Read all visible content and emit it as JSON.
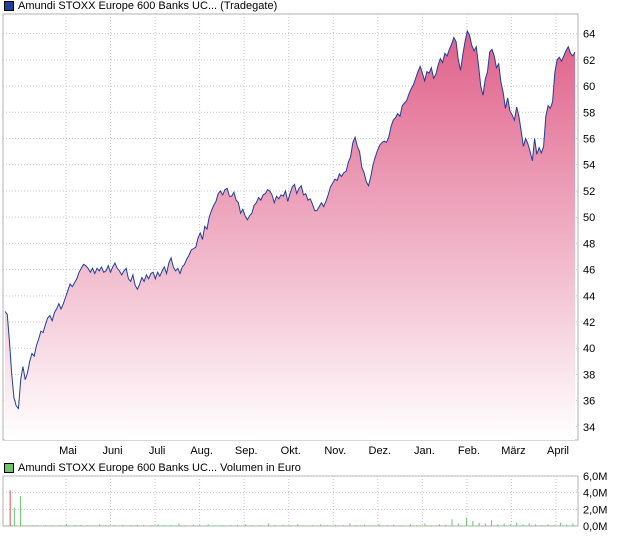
{
  "price_legend": {
    "label": "Amundi STOXX Europe 600 Banks UC... (Tradegate)",
    "color": "#1f3f99"
  },
  "volume_legend": {
    "label": "Amundi STOXX Europe 600 Banks UC... Volumen in Euro",
    "color": "#6cc36c"
  },
  "chart_data": [
    {
      "type": "area",
      "x_labels": [
        "Mai",
        "Juni",
        "Juli",
        "Aug.",
        "Sep.",
        "Okt.",
        "Nov.",
        "Dez.",
        "Jan.",
        "Feb.",
        "März",
        "April"
      ],
      "y_ticks": [
        34,
        36,
        38,
        40,
        42,
        44,
        46,
        48,
        50,
        52,
        54,
        56,
        58,
        60,
        62,
        64
      ],
      "ylim": [
        33,
        65.5
      ],
      "line_color": "#1f3f99",
      "fill_top_color": "#e0608a",
      "fill_bottom_color": "#ffffff",
      "grid": true,
      "series": [
        {
          "values": [
            42.8,
            42.6,
            40.5,
            38.0,
            36.2,
            35.6,
            35.4,
            37.6,
            38.6,
            37.6,
            38.1,
            39.0,
            39.6,
            39.4,
            40.2,
            40.7,
            41.3,
            41.2,
            41.8,
            42.3,
            42.5,
            42.1,
            42.7,
            43.0,
            43.4,
            43.0,
            43.4,
            43.9,
            44.4,
            44.9,
            44.7,
            45.0,
            45.3,
            45.8,
            46.1,
            46.4,
            46.3,
            46.1,
            45.8,
            46.1,
            45.7,
            46.1,
            45.9,
            46.2,
            45.8,
            45.9,
            46.3,
            45.8,
            46.2,
            46.5,
            46.1,
            45.9,
            45.6,
            45.9,
            46.1,
            45.3,
            45.1,
            45.6,
            44.8,
            44.5,
            44.9,
            45.4,
            45.1,
            45.6,
            45.3,
            45.7,
            45.8,
            45.3,
            45.8,
            45.5,
            45.9,
            46.2,
            45.7,
            46.5,
            46.9,
            46.2,
            45.9,
            46.1,
            45.7,
            46.2,
            46.4,
            46.8,
            47.1,
            47.5,
            47.6,
            47.7,
            48.4,
            48.8,
            48.3,
            49.3,
            49.1,
            50.0,
            50.5,
            50.9,
            51.2,
            51.8,
            52.0,
            51.7,
            52.1,
            52.2,
            51.6,
            51.6,
            51.9,
            51.3,
            51.1,
            50.3,
            50.6,
            50.1,
            49.8,
            50.1,
            50.3,
            50.9,
            51.1,
            51.5,
            51.3,
            51.7,
            51.8,
            52.1,
            52.0,
            51.7,
            51.1,
            51.6,
            51.4,
            51.7,
            51.6,
            52.0,
            51.2,
            51.8,
            52.3,
            52.5,
            51.8,
            52.2,
            52.4,
            51.7,
            51.8,
            51.3,
            51.4,
            51.0,
            50.5,
            50.5,
            50.8,
            51.1,
            50.8,
            51.2,
            51.7,
            52.3,
            52.6,
            52.9,
            52.8,
            53.3,
            53.1,
            53.4,
            53.5,
            54.2,
            54.6,
            55.7,
            56.1,
            55.4,
            55.0,
            53.8,
            53.4,
            52.7,
            52.4,
            53.1,
            54.0,
            54.6,
            55.1,
            55.5,
            55.7,
            55.8,
            55.7,
            56.1,
            56.9,
            57.4,
            57.6,
            57.9,
            57.7,
            58.5,
            58.7,
            58.9,
            59.4,
            59.8,
            60.1,
            60.6,
            61.1,
            61.5,
            61.0,
            60.4,
            61.1,
            61.0,
            61.4,
            60.6,
            60.9,
            61.6,
            62.1,
            61.8,
            62.5,
            62.3,
            62.8,
            63.2,
            63.7,
            63.4,
            62.0,
            61.2,
            62.4,
            63.4,
            64.2,
            63.9,
            63.1,
            62.7,
            63.0,
            61.6,
            60.0,
            59.3,
            60.5,
            61.1,
            62.6,
            62.8,
            62.3,
            61.4,
            61.7,
            60.3,
            59.5,
            58.3,
            59.1,
            58.1,
            57.8,
            57.4,
            58.4,
            57.7,
            56.6,
            55.4,
            56.0,
            55.6,
            55.0,
            54.3,
            56.0,
            54.8,
            55.3,
            54.9,
            55.4,
            57.7,
            58.5,
            58.3,
            58.8,
            61.0,
            62.0,
            62.2,
            61.9,
            62.3,
            62.7,
            63.0,
            62.5,
            62.3,
            62.6
          ]
        }
      ]
    },
    {
      "type": "bar",
      "y_ticks": [
        "0,0M",
        "2,0M",
        "4,0M",
        "6,0M"
      ],
      "ylim": [
        0,
        6.0
      ],
      "unit": "M",
      "grid": true,
      "bar_color": "#6cc36c",
      "values": [
        0.05,
        0.05,
        4.3,
        0.1,
        2.2,
        0.08,
        0.05,
        3.6,
        0.1,
        0.05,
        0.08,
        0.05,
        0.05,
        0.1,
        0.05,
        0.08,
        0.05,
        0.05,
        0.05,
        0.1,
        0.05,
        0.05,
        0.08,
        0.05,
        0.05,
        0.05,
        0.1,
        0.05,
        0.05,
        0.2,
        0.08,
        0.05,
        0.05,
        0.1,
        0.05,
        0.05,
        0.15,
        0.05,
        0.05,
        0.1,
        0.05,
        0.05,
        0.08,
        0.05,
        0.05,
        0.2,
        0.05,
        0.05,
        0.1,
        0.05,
        0.05,
        0.05,
        0.1,
        0.05,
        0.05,
        0.05,
        0.15,
        0.05,
        0.05,
        0.05,
        0.1,
        0.05,
        0.05,
        0.15,
        0.05,
        0.05,
        0.1,
        0.05,
        0.05,
        0.05,
        0.1,
        0.05,
        0.05,
        0.2,
        0.05,
        0.05,
        0.08,
        0.05,
        0.05,
        0.1,
        0.05,
        0.05,
        0.05,
        0.3,
        0.05,
        0.05,
        0.1,
        0.05,
        0.05,
        0.05,
        0.15,
        0.05,
        0.05,
        0.1,
        0.05,
        0.05,
        0.05,
        0.2,
        0.05,
        0.05,
        0.08,
        0.05,
        0.05,
        0.05,
        0.1,
        0.05,
        0.05,
        0.05,
        0.1,
        0.05,
        0.05,
        0.15,
        0.05,
        0.05,
        0.05,
        0.2,
        0.05,
        0.05,
        0.1,
        0.05,
        0.05,
        0.05,
        0.1,
        0.05,
        0.05,
        0.05,
        0.3,
        0.05,
        0.05,
        0.1,
        0.05,
        0.05,
        0.05,
        0.15,
        0.05,
        0.05,
        0.1,
        0.05,
        0.05,
        0.05,
        0.2,
        0.05,
        0.05,
        0.08,
        0.05,
        0.05,
        0.05,
        0.1,
        0.05,
        0.05,
        0.05,
        0.2,
        0.05,
        0.05,
        0.1,
        0.05,
        0.05,
        0.05,
        0.15,
        0.05,
        0.05,
        0.05,
        0.1,
        0.05,
        0.05,
        0.3,
        0.05,
        0.05,
        0.1,
        0.05,
        0.05,
        0.05,
        0.15,
        0.05,
        0.05,
        0.08,
        0.05,
        0.05,
        0.05,
        0.2,
        0.05,
        0.05,
        0.05,
        0.1,
        0.05,
        0.05,
        0.15,
        0.05,
        0.05,
        0.05,
        0.1,
        0.05,
        0.05,
        0.05,
        0.2,
        0.05,
        0.05,
        0.1,
        0.05,
        0.05,
        0.05,
        0.3,
        0.05,
        0.05,
        0.1,
        0.05,
        0.05,
        0.05,
        0.2,
        0.05,
        0.05,
        0.15,
        0.05,
        0.05,
        0.8,
        0.05,
        0.05,
        0.3,
        0.05,
        0.05,
        0.05,
        1.0,
        0.05,
        0.05,
        0.6,
        0.05,
        0.05,
        0.4,
        0.05,
        0.05,
        0.3,
        0.05,
        0.05,
        0.7,
        0.05,
        0.05,
        0.2,
        0.05,
        0.05,
        0.3,
        0.05,
        0.05,
        0.2,
        0.05,
        0.05,
        0.4,
        0.05,
        0.05,
        0.2,
        0.05,
        0.05,
        0.3,
        0.05,
        0.05,
        0.2,
        0.05,
        0.05,
        0.1,
        0.05,
        0.05,
        0.2,
        0.05,
        0.05,
        0.1,
        0.05,
        0.05,
        0.4,
        0.05,
        0.05,
        0.2,
        0.05,
        0.05,
        0.3,
        0.05
      ]
    }
  ]
}
